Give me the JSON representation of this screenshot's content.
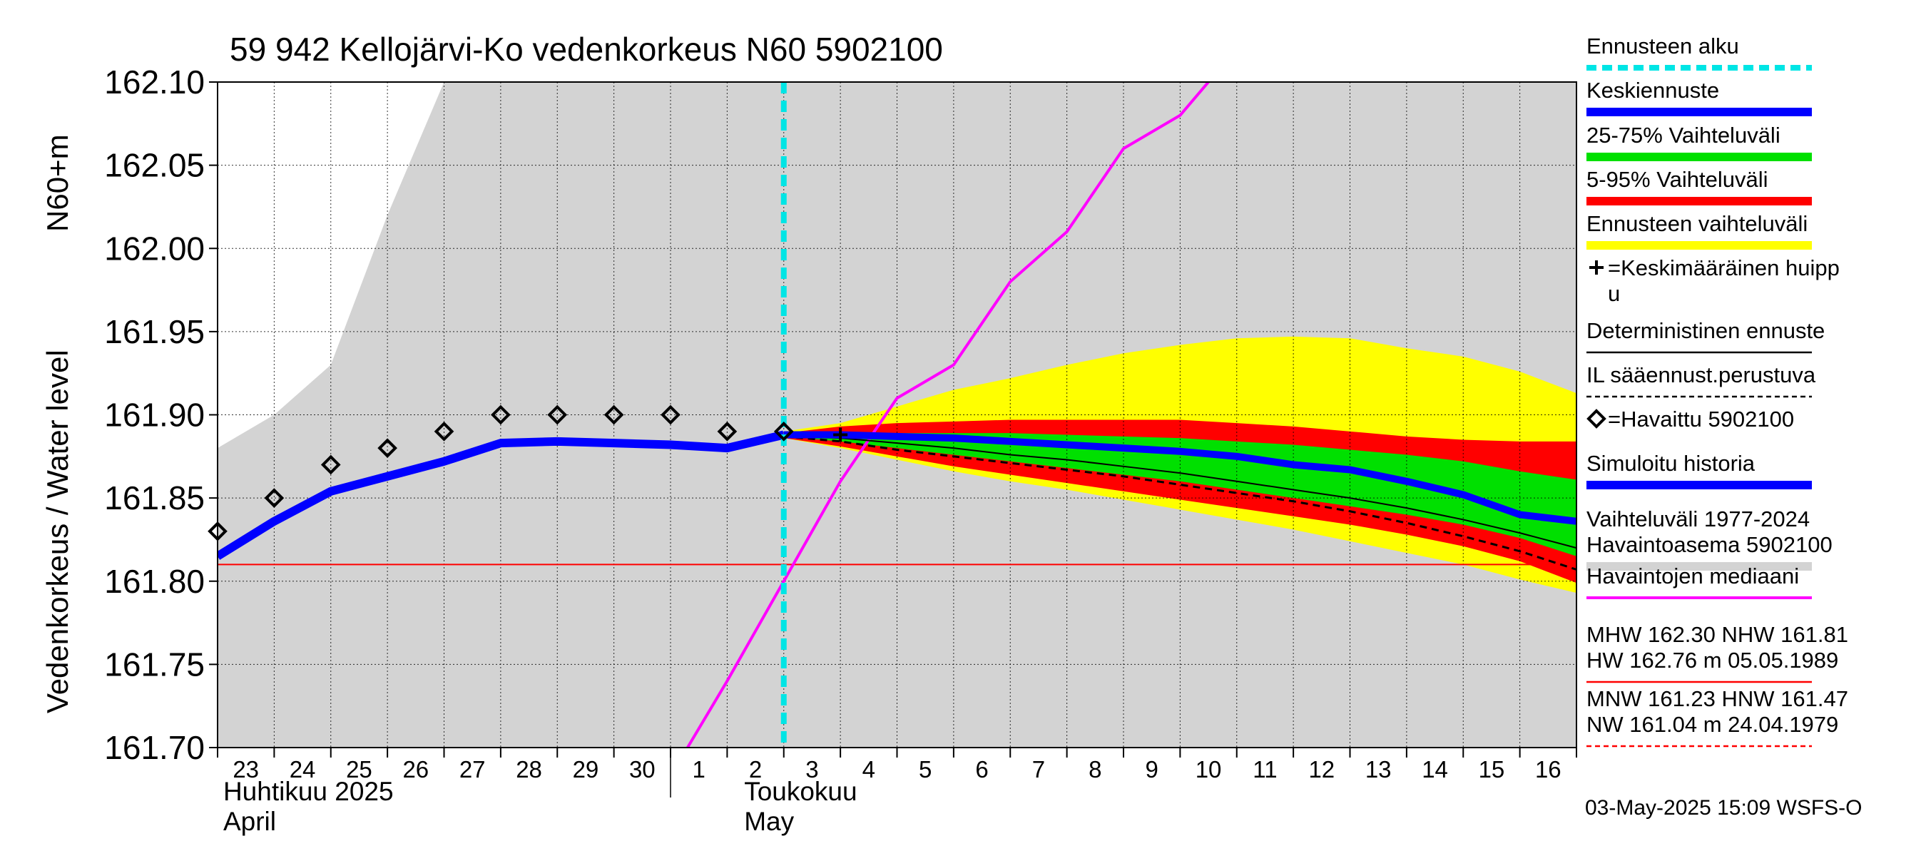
{
  "chart_data": {
    "type": "line",
    "title": "59 942 Kellojärvi-Ko vedenkorkeus N60 5902100",
    "ylabel_main": "Vedenkorkeus / Water level",
    "ylabel_unit": "N60+m",
    "ylim": [
      161.7,
      162.1
    ],
    "y_ticks": [
      {
        "value": 161.7,
        "label": "161.70"
      },
      {
        "value": 161.75,
        "label": "161.75"
      },
      {
        "value": 161.8,
        "label": "161.80"
      },
      {
        "value": 161.85,
        "label": "161.85"
      },
      {
        "value": 161.9,
        "label": "161.90"
      },
      {
        "value": 161.95,
        "label": "161.95"
      },
      {
        "value": 162.0,
        "label": "162.00"
      },
      {
        "value": 162.05,
        "label": "162.05"
      },
      {
        "value": 162.1,
        "label": "162.10"
      }
    ],
    "xlim": [
      0,
      24
    ],
    "x_ticks": [
      {
        "x": 0.5,
        "label": "23"
      },
      {
        "x": 1.5,
        "label": "24"
      },
      {
        "x": 2.5,
        "label": "25"
      },
      {
        "x": 3.5,
        "label": "26"
      },
      {
        "x": 4.5,
        "label": "27"
      },
      {
        "x": 5.5,
        "label": "28"
      },
      {
        "x": 6.5,
        "label": "29"
      },
      {
        "x": 7.5,
        "label": "30"
      },
      {
        "x": 8.5,
        "label": "1"
      },
      {
        "x": 9.5,
        "label": "2"
      },
      {
        "x": 10.5,
        "label": "3"
      },
      {
        "x": 11.5,
        "label": "4"
      },
      {
        "x": 12.5,
        "label": "5"
      },
      {
        "x": 13.5,
        "label": "6"
      },
      {
        "x": 14.5,
        "label": "7"
      },
      {
        "x": 15.5,
        "label": "8"
      },
      {
        "x": 16.5,
        "label": "9"
      },
      {
        "x": 17.5,
        "label": "10"
      },
      {
        "x": 18.5,
        "label": "11"
      },
      {
        "x": 19.5,
        "label": "12"
      },
      {
        "x": 20.5,
        "label": "13"
      },
      {
        "x": 21.5,
        "label": "14"
      },
      {
        "x": 22.5,
        "label": "15"
      },
      {
        "x": 23.5,
        "label": "16"
      }
    ],
    "month_labels": [
      {
        "x": 0.1,
        "line1": "Huhtikuu  2025",
        "line2": "April"
      },
      {
        "x": 9.3,
        "line1": "Toukokuu",
        "line2": "May"
      }
    ],
    "month_divider_x": 8,
    "forecast_start_x": 10,
    "series": {
      "range_1977_2024": {
        "name": "Vaihteluväli 1977-2024 Havaintoasema 5902100",
        "color": "#d3d3d3",
        "x": [
          0,
          1,
          2,
          3,
          4,
          24
        ],
        "upper": [
          161.88,
          161.9,
          161.93,
          162.02,
          162.1,
          162.1
        ],
        "lower": [
          161.7,
          161.7,
          161.7,
          161.7,
          161.7,
          161.7
        ]
      },
      "forecast_range": {
        "name": "Ennusteen vaihteluväli",
        "color": "#ffff00",
        "x": [
          10,
          11,
          12,
          13,
          14,
          15,
          16,
          17,
          18,
          19,
          20,
          21,
          22,
          23,
          24
        ],
        "upper": [
          161.89,
          161.895,
          161.905,
          161.915,
          161.922,
          161.93,
          161.937,
          161.942,
          161.946,
          161.947,
          161.946,
          161.94,
          161.935,
          161.926,
          161.913
        ],
        "lower": [
          161.886,
          161.88,
          161.873,
          161.866,
          161.86,
          161.855,
          161.849,
          161.843,
          161.837,
          161.831,
          161.824,
          161.817,
          161.81,
          161.801,
          161.793
        ]
      },
      "p5_95": {
        "name": "5-95% Vaihteluväli",
        "color": "#ff0000",
        "x": [
          10,
          11,
          12,
          13,
          14,
          15,
          16,
          17,
          18,
          19,
          20,
          21,
          22,
          23,
          24
        ],
        "upper": [
          161.889,
          161.893,
          161.895,
          161.896,
          161.897,
          161.897,
          161.897,
          161.897,
          161.895,
          161.893,
          161.89,
          161.887,
          161.885,
          161.884,
          161.884
        ],
        "lower": [
          161.886,
          161.881,
          161.875,
          161.869,
          161.864,
          161.859,
          161.854,
          161.849,
          161.844,
          161.839,
          161.834,
          161.828,
          161.821,
          161.812,
          161.799
        ]
      },
      "p25_75": {
        "name": "25-75% Vaihteluväli",
        "color": "#00e000",
        "x": [
          10,
          11,
          12,
          13,
          14,
          15,
          16,
          17,
          18,
          19,
          20,
          21,
          22,
          23,
          24
        ],
        "upper": [
          161.888,
          161.889,
          161.889,
          161.889,
          161.889,
          161.888,
          161.887,
          161.886,
          161.884,
          161.882,
          161.879,
          161.876,
          161.872,
          161.866,
          161.861
        ],
        "lower": [
          161.887,
          161.884,
          161.88,
          161.876,
          161.872,
          161.868,
          161.864,
          161.86,
          161.855,
          161.85,
          161.845,
          161.84,
          161.834,
          161.826,
          161.815
        ]
      },
      "median_observations": {
        "name": "Havaintojen mediaani",
        "color": "#ff00ff",
        "x": [
          8.3,
          9,
          10,
          11,
          12,
          13,
          14,
          15,
          16,
          17,
          17.5
        ],
        "y": [
          161.7,
          161.74,
          161.8,
          161.86,
          161.91,
          161.93,
          161.98,
          162.01,
          162.06,
          162.08,
          162.1
        ]
      },
      "mhw_line": {
        "name": "MHW 162.30 NHW 161.81",
        "color": "#ff0000",
        "y": 161.81
      },
      "deterministic": {
        "name": "Deterministinen ennuste",
        "color": "#000000",
        "x": [
          10,
          11,
          12,
          13,
          14,
          15,
          16,
          17,
          18,
          19,
          20,
          21,
          22,
          23,
          24
        ],
        "y": [
          161.887,
          161.886,
          161.883,
          161.88,
          161.876,
          161.873,
          161.869,
          161.865,
          161.86,
          161.855,
          161.85,
          161.844,
          161.837,
          161.829,
          161.82
        ]
      },
      "il_forecast": {
        "name": "IL sääennust.perustuva",
        "color": "#000000",
        "x": [
          10,
          11,
          12,
          13,
          14,
          15,
          16,
          17,
          18,
          19,
          20,
          21,
          22,
          23,
          24
        ],
        "y": [
          161.887,
          161.884,
          161.879,
          161.875,
          161.871,
          161.867,
          161.863,
          161.858,
          161.853,
          161.848,
          161.842,
          161.835,
          161.827,
          161.818,
          161.807
        ]
      },
      "mean_forecast": {
        "name": "Keskiennuste",
        "color": "#0000ff",
        "x": [
          10,
          11,
          12,
          13,
          14,
          15,
          16,
          17,
          18,
          19,
          20,
          21,
          22,
          23,
          24
        ],
        "y": [
          161.888,
          161.888,
          161.887,
          161.886,
          161.884,
          161.882,
          161.88,
          161.878,
          161.875,
          161.87,
          161.867,
          161.86,
          161.852,
          161.84,
          161.836
        ]
      },
      "simulated_history": {
        "name": "Simuloitu historia",
        "color": "#0000ff",
        "x": [
          0,
          1,
          2,
          3,
          4,
          5,
          6,
          7,
          8,
          9,
          10
        ],
        "y": [
          161.815,
          161.836,
          161.854,
          161.863,
          161.872,
          161.883,
          161.884,
          161.883,
          161.882,
          161.88,
          161.888
        ]
      },
      "observed": {
        "name": "=Havaittu 5902100",
        "x": [
          0,
          1,
          2,
          3,
          4,
          5,
          6,
          7,
          8,
          9,
          10
        ],
        "y": [
          161.83,
          161.85,
          161.87,
          161.88,
          161.89,
          161.9,
          161.9,
          161.9,
          161.9,
          161.89,
          161.89
        ]
      },
      "mean_peak": {
        "name": "=Keskimääräinen huippu",
        "x": 11,
        "y": 161.888
      }
    },
    "legend": [
      {
        "key": "forecast_start",
        "label": "Ennusteen alku",
        "color": "#00e5e5",
        "style": "dashed-thick"
      },
      {
        "key": "mean_forecast",
        "label": "Keskiennuste",
        "color": "#0000ff",
        "style": "thick"
      },
      {
        "key": "p25_75",
        "label": "25-75% Vaihteluväli",
        "color": "#00e000",
        "style": "thick"
      },
      {
        "key": "p5_95",
        "label": "5-95% Vaihteluväli",
        "color": "#ff0000",
        "style": "thick"
      },
      {
        "key": "forecast_range",
        "label": "Ennusteen vaihteluväli",
        "color": "#ffff00",
        "style": "thick"
      },
      {
        "key": "mean_peak",
        "label": "=Keskimääräinen huipp",
        "label2": "u",
        "color": "#000000",
        "style": "plus"
      },
      {
        "key": "deterministic",
        "label": "Deterministinen ennuste",
        "color": "#000000",
        "style": "thin"
      },
      {
        "key": "il_forecast",
        "label": "IL sääennust.perustuva",
        "color": "#000000",
        "style": "dashed-thin"
      },
      {
        "key": "observed",
        "label": "=Havaittu 5902100",
        "color": "#000000",
        "style": "diamond"
      },
      {
        "key": "simulated_history",
        "label": "Simuloitu historia",
        "color": "#0000ff",
        "style": "thick"
      },
      {
        "key": "range_1977_2024",
        "label": "Vaihteluväli 1977-2024",
        "label2": " Havaintoasema 5902100",
        "color": "#d3d3d3",
        "style": "thick"
      },
      {
        "key": "median_observations",
        "label": "Havaintojen mediaani",
        "color": "#ff00ff",
        "style": "medium"
      },
      {
        "key": "mhw",
        "label": "MHW 162.30 NHW 161.81",
        "label2": "HW 162.76 m 05.05.1989",
        "color": "#ff0000",
        "style": "thin"
      },
      {
        "key": "mnw",
        "label": "MNW 161.23 HNW 161.47",
        "label2": "NW 161.04 m 24.04.1979",
        "color": "#ff0000",
        "style": "dashed-thin"
      }
    ],
    "footer": "03-May-2025 15:09 WSFS-O"
  }
}
